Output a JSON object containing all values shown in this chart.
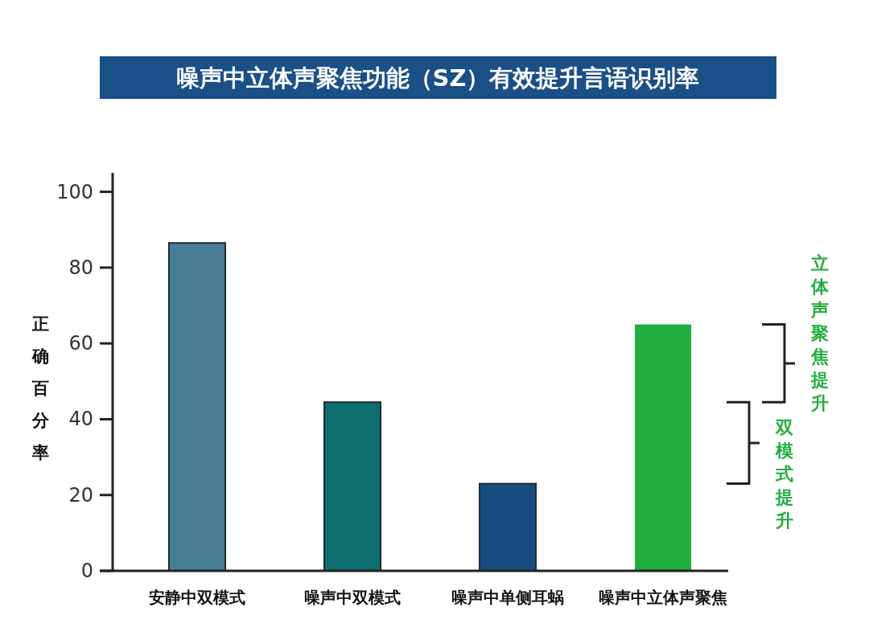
{
  "chart_data": {
    "type": "bar",
    "title": "噪声中立体声聚焦功能（SZ）有效提升言语识别率",
    "ylabel": "正确百分率",
    "categories": [
      "安静中双模式",
      "噪声中双模式",
      "噪声中单侧耳蜗",
      "噪声中立体声聚焦"
    ],
    "values": [
      86.5,
      44.5,
      23,
      65
    ],
    "colors": [
      "#4a7d96",
      "#0f6e6e",
      "#174c80",
      "#22ad3f"
    ],
    "ylim": [
      0,
      105
    ],
    "yticks": [
      0,
      20,
      40,
      60,
      80,
      100
    ],
    "grid": false,
    "annotations": [
      "立体声聚焦提升",
      "双模式提升"
    ]
  }
}
